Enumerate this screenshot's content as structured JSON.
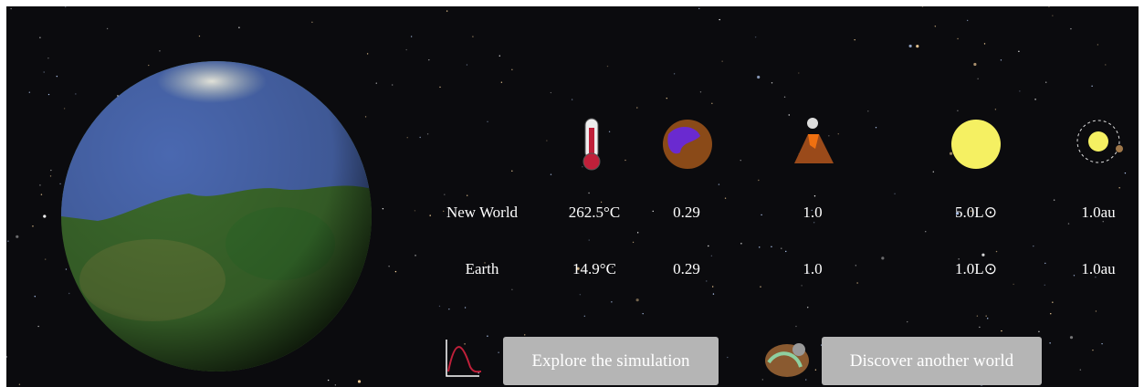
{
  "table": {
    "rows": [
      [
        "New World",
        "262.5°C",
        "0.29",
        "1.0",
        "5.0L⊙",
        "1.0au"
      ],
      [
        "Earth",
        "14.9°C",
        "0.29",
        "1.0",
        "1.0L⊙",
        "1.0au"
      ]
    ]
  },
  "buttons": [
    "Explore the simulation",
    "Discover another world"
  ]
}
